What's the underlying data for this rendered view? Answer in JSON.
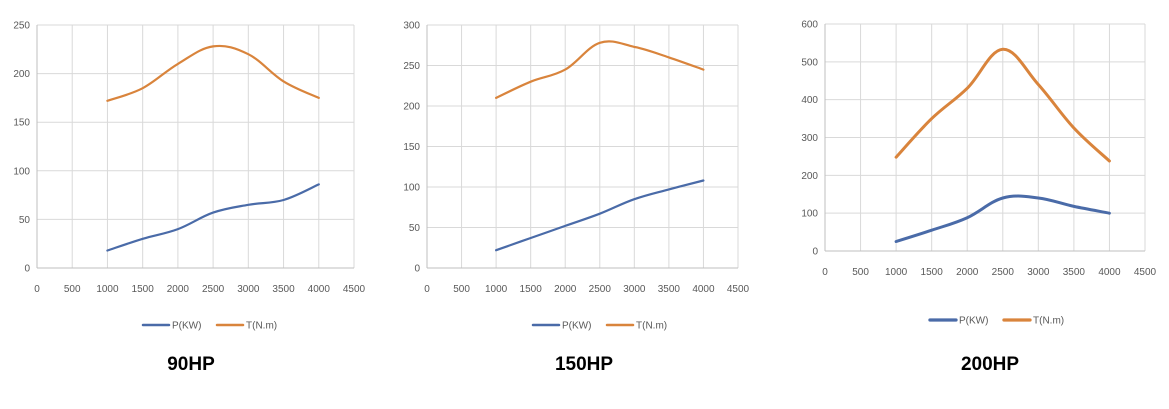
{
  "colors": {
    "power": "#4a6ba8",
    "torque": "#d9843c",
    "grid": "#d9d9d9",
    "axis": "#bfbfbf"
  },
  "chart_data": [
    {
      "type": "line",
      "caption": "90HP",
      "x": [
        1000,
        1500,
        2000,
        2500,
        3000,
        3500,
        4000
      ],
      "xlim": [
        0,
        4500
      ],
      "xticks": [
        0,
        500,
        1000,
        1500,
        2000,
        2500,
        3000,
        3500,
        4000,
        4500
      ],
      "ylim": [
        0,
        250
      ],
      "yticks": [
        0,
        50,
        100,
        150,
        200,
        250
      ],
      "grid": true,
      "legend_position": "bottom",
      "series": [
        {
          "name": "P(KW)",
          "values": [
            18,
            30,
            40,
            57,
            65,
            70,
            86
          ]
        },
        {
          "name": "T(N.m)",
          "values": [
            172,
            185,
            210,
            228,
            220,
            192,
            175
          ]
        }
      ]
    },
    {
      "type": "line",
      "caption": "150HP",
      "x": [
        1000,
        1500,
        2000,
        2500,
        3000,
        3500,
        4000
      ],
      "xlim": [
        0,
        4500
      ],
      "xticks": [
        0,
        500,
        1000,
        1500,
        2000,
        2500,
        3000,
        3500,
        4000,
        4500
      ],
      "ylim": [
        0,
        300
      ],
      "yticks": [
        0,
        50,
        100,
        150,
        200,
        250,
        300
      ],
      "grid": true,
      "legend_position": "bottom",
      "series": [
        {
          "name": "P(KW)",
          "values": [
            22,
            37,
            52,
            67,
            85,
            97,
            108
          ]
        },
        {
          "name": "T(N.m)",
          "values": [
            210,
            230,
            245,
            278,
            273,
            260,
            245
          ]
        }
      ]
    },
    {
      "type": "line",
      "caption": "200HP",
      "x": [
        1000,
        1500,
        2000,
        2500,
        3000,
        3500,
        4000
      ],
      "xlim": [
        0,
        4500
      ],
      "xticks": [
        0,
        500,
        1000,
        1500,
        2000,
        2500,
        3000,
        3500,
        4000,
        4500
      ],
      "ylim": [
        0,
        600
      ],
      "yticks": [
        0,
        100,
        200,
        300,
        400,
        500,
        600
      ],
      "grid": true,
      "legend_position": "bottom",
      "series": [
        {
          "name": "P(KW)",
          "values": [
            25,
            55,
            88,
            140,
            140,
            118,
            100
          ]
        },
        {
          "name": "T(N.m)",
          "values": [
            248,
            350,
            430,
            533,
            440,
            325,
            238
          ]
        }
      ]
    }
  ]
}
